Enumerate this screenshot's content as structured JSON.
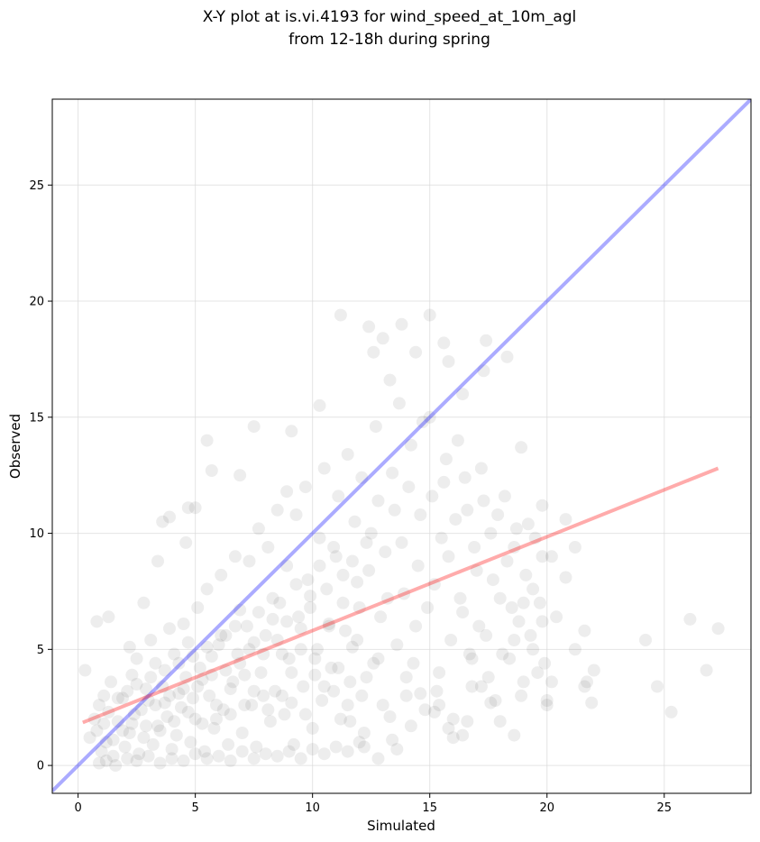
{
  "chart_data": {
    "type": "scatter",
    "title": [
      "X-Y plot at is.vi.4193 for wind_speed_at_10m_agl",
      "from 12-18h during spring"
    ],
    "xlabel": "Simulated",
    "ylabel": "Observed",
    "xlim": [
      -1.1,
      28.7
    ],
    "ylim": [
      -1.2,
      28.7
    ],
    "xticks": [
      0,
      5,
      10,
      15,
      20,
      25
    ],
    "yticks": [
      0,
      5,
      10,
      15,
      20,
      25
    ],
    "grid": true,
    "point_color": "#000000",
    "point_alpha": 0.07,
    "identity_line": {
      "color": "#0000ff",
      "alpha": 0.33,
      "x": [
        -1.1,
        28.7
      ],
      "y": [
        -1.1,
        28.7
      ]
    },
    "fit_line": {
      "color": "#ff0000",
      "alpha": 0.33,
      "x": [
        0.2,
        27.3
      ],
      "y": [
        1.85,
        12.8
      ]
    },
    "points": [
      [
        1.0,
        0.6
      ],
      [
        1.2,
        1.0
      ],
      [
        0.8,
        1.5
      ],
      [
        1.5,
        0.4
      ],
      [
        1.7,
        1.9
      ],
      [
        2.0,
        0.8
      ],
      [
        2.2,
        1.4
      ],
      [
        2.4,
        2.2
      ],
      [
        2.6,
        0.5
      ],
      [
        2.8,
        1.2
      ],
      [
        3.0,
        2.8
      ],
      [
        3.2,
        0.9
      ],
      [
        3.4,
        1.7
      ],
      [
        3.6,
        3.4
      ],
      [
        3.8,
        2.1
      ],
      [
        4.0,
        0.7
      ],
      [
        4.2,
        1.3
      ],
      [
        4.4,
        2.5
      ],
      [
        4.6,
        3.8
      ],
      [
        4.8,
        1.0
      ],
      [
        5.0,
        2.0
      ],
      [
        5.2,
        4.2
      ],
      [
        5.4,
        0.6
      ],
      [
        5.6,
        3.0
      ],
      [
        5.8,
        1.6
      ],
      [
        6.0,
        5.2
      ],
      [
        6.2,
        2.4
      ],
      [
        6.4,
        0.9
      ],
      [
        6.6,
        3.6
      ],
      [
        6.8,
        4.8
      ],
      [
        7.0,
        1.4
      ],
      [
        7.2,
        6.0
      ],
      [
        7.4,
        2.6
      ],
      [
        7.6,
        0.8
      ],
      [
        7.8,
        4.0
      ],
      [
        8.0,
        5.6
      ],
      [
        8.2,
        1.9
      ],
      [
        8.4,
        3.2
      ],
      [
        8.6,
        7.0
      ],
      [
        8.8,
        2.2
      ],
      [
        9.0,
        4.6
      ],
      [
        9.2,
        0.9
      ],
      [
        9.4,
        6.4
      ],
      [
        9.6,
        3.4
      ],
      [
        9.8,
        8.0
      ],
      [
        10.0,
        1.6
      ],
      [
        10.2,
        5.0
      ],
      [
        10.4,
        2.8
      ],
      [
        10.6,
        7.6
      ],
      [
        10.8,
        4.2
      ],
      [
        11.0,
        9.0
      ],
      [
        11.2,
        2.0
      ],
      [
        11.4,
        5.8
      ],
      [
        11.6,
        3.6
      ],
      [
        11.8,
        10.5
      ],
      [
        12.0,
        6.8
      ],
      [
        12.2,
        1.4
      ],
      [
        12.4,
        8.4
      ],
      [
        12.6,
        4.4
      ],
      [
        12.8,
        11.4
      ],
      [
        13.0,
        2.6
      ],
      [
        13.2,
        7.2
      ],
      [
        13.4,
        12.6
      ],
      [
        13.6,
        5.2
      ],
      [
        13.8,
        9.6
      ],
      [
        14.0,
        3.0
      ],
      [
        14.2,
        13.8
      ],
      [
        14.4,
        6.0
      ],
      [
        14.6,
        10.8
      ],
      [
        14.8,
        2.4
      ],
      [
        15.0,
        15.0
      ],
      [
        15.2,
        7.8
      ],
      [
        15.4,
        4.0
      ],
      [
        15.6,
        12.2
      ],
      [
        15.8,
        9.0
      ],
      [
        16.0,
        2.0
      ],
      [
        16.2,
        14.0
      ],
      [
        16.4,
        6.6
      ],
      [
        16.6,
        11.0
      ],
      [
        16.8,
        3.4
      ],
      [
        17.0,
        8.4
      ],
      [
        17.2,
        12.8
      ],
      [
        17.4,
        5.6
      ],
      [
        17.6,
        10.0
      ],
      [
        17.8,
        2.8
      ],
      [
        18.0,
        7.2
      ],
      [
        18.2,
        11.6
      ],
      [
        18.4,
        4.6
      ],
      [
        18.6,
        9.4
      ],
      [
        18.8,
        6.2
      ],
      [
        19.0,
        3.6
      ],
      [
        19.2,
        10.4
      ],
      [
        19.4,
        7.6
      ],
      [
        19.6,
        4.0
      ],
      [
        19.8,
        9.0
      ],
      [
        20.0,
        2.6
      ],
      [
        20.4,
        6.4
      ],
      [
        20.8,
        10.6
      ],
      [
        21.2,
        5.0
      ],
      [
        21.6,
        3.4
      ],
      [
        22.0,
        4.1
      ],
      [
        24.2,
        5.4
      ],
      [
        24.7,
        3.4
      ],
      [
        25.3,
        2.3
      ],
      [
        26.1,
        6.3
      ],
      [
        26.8,
        4.1
      ],
      [
        27.3,
        5.9
      ],
      [
        0.3,
        4.1
      ],
      [
        0.8,
        6.2
      ],
      [
        1.3,
        6.4
      ],
      [
        2.2,
        5.1
      ],
      [
        2.8,
        7.0
      ],
      [
        3.4,
        8.8
      ],
      [
        3.6,
        10.5
      ],
      [
        3.9,
        10.7
      ],
      [
        4.6,
        9.6
      ],
      [
        4.7,
        11.1
      ],
      [
        5.0,
        11.1
      ],
      [
        5.5,
        14.0
      ],
      [
        5.7,
        12.7
      ],
      [
        6.9,
        12.5
      ],
      [
        7.5,
        14.6
      ],
      [
        8.9,
        11.8
      ],
      [
        9.1,
        14.4
      ],
      [
        10.3,
        15.5
      ],
      [
        11.2,
        19.4
      ],
      [
        12.4,
        18.9
      ],
      [
        12.6,
        17.8
      ],
      [
        13.0,
        18.4
      ],
      [
        13.3,
        16.6
      ],
      [
        13.8,
        19.0
      ],
      [
        14.4,
        17.8
      ],
      [
        15.0,
        19.4
      ],
      [
        15.6,
        18.2
      ],
      [
        15.8,
        17.4
      ],
      [
        16.4,
        16.0
      ],
      [
        17.4,
        18.3
      ],
      [
        17.3,
        17.0
      ],
      [
        18.3,
        17.6
      ],
      [
        18.9,
        13.7
      ],
      [
        19.8,
        11.2
      ],
      [
        20.2,
        9.0
      ],
      [
        20.8,
        8.1
      ],
      [
        21.2,
        9.4
      ],
      [
        21.6,
        5.8
      ],
      [
        21.7,
        3.6
      ],
      [
        21.9,
        2.7
      ],
      [
        19.0,
        7.0
      ],
      [
        18.6,
        5.4
      ],
      [
        19.4,
        5.0
      ],
      [
        19.8,
        6.2
      ],
      [
        20.0,
        2.8
      ],
      [
        20.2,
        3.6
      ],
      [
        18.6,
        1.3
      ],
      [
        18.0,
        1.9
      ],
      [
        17.6,
        2.7
      ],
      [
        17.2,
        3.4
      ],
      [
        16.8,
        4.6
      ],
      [
        16.4,
        1.3
      ],
      [
        15.8,
        1.6
      ],
      [
        15.2,
        2.3
      ],
      [
        14.6,
        3.1
      ],
      [
        14.0,
        3.8
      ],
      [
        13.4,
        1.1
      ],
      [
        12.8,
        4.6
      ],
      [
        12.2,
        0.8
      ],
      [
        11.6,
        1.9
      ],
      [
        1.1,
        3.0
      ],
      [
        1.4,
        3.6
      ],
      [
        1.9,
        2.9
      ],
      [
        2.3,
        3.9
      ],
      [
        2.5,
        4.6
      ],
      [
        2.9,
        3.3
      ],
      [
        3.1,
        5.4
      ],
      [
        3.3,
        4.4
      ],
      [
        3.7,
        2.7
      ],
      [
        3.9,
        5.9
      ],
      [
        4.1,
        4.8
      ],
      [
        4.3,
        3.1
      ],
      [
        4.5,
        6.1
      ],
      [
        4.7,
        5.3
      ],
      [
        4.9,
        2.9
      ],
      [
        5.1,
        6.8
      ],
      [
        5.3,
        3.7
      ],
      [
        5.5,
        7.6
      ],
      [
        5.7,
        4.7
      ],
      [
        5.9,
        2.6
      ],
      [
        6.1,
        8.2
      ],
      [
        6.3,
        5.6
      ],
      [
        6.5,
        3.3
      ],
      [
        6.7,
        9.0
      ],
      [
        6.9,
        6.7
      ],
      [
        7.1,
        3.9
      ],
      [
        7.3,
        8.8
      ],
      [
        7.5,
        5.3
      ],
      [
        7.7,
        10.2
      ],
      [
        7.9,
        3.0
      ],
      [
        8.1,
        9.4
      ],
      [
        8.3,
        6.3
      ],
      [
        8.5,
        11.0
      ],
      [
        8.7,
        4.8
      ],
      [
        8.9,
        8.6
      ],
      [
        9.1,
        2.7
      ],
      [
        9.3,
        10.8
      ],
      [
        9.5,
        5.9
      ],
      [
        9.7,
        12.0
      ],
      [
        9.9,
        7.3
      ],
      [
        10.1,
        3.9
      ],
      [
        10.3,
        9.8
      ],
      [
        10.5,
        12.8
      ],
      [
        10.7,
        6.1
      ],
      [
        10.9,
        3.2
      ],
      [
        11.1,
        11.6
      ],
      [
        11.3,
        8.2
      ],
      [
        11.5,
        13.4
      ],
      [
        11.7,
        5.1
      ],
      [
        11.9,
        7.9
      ],
      [
        12.1,
        12.4
      ],
      [
        12.3,
        3.8
      ],
      [
        12.5,
        10.0
      ],
      [
        12.7,
        14.6
      ],
      [
        12.9,
        6.4
      ],
      [
        13.1,
        9.2
      ],
      [
        13.3,
        2.1
      ],
      [
        13.5,
        11.0
      ],
      [
        13.7,
        15.6
      ],
      [
        13.9,
        7.4
      ],
      [
        14.1,
        12.0
      ],
      [
        14.3,
        4.4
      ],
      [
        14.5,
        8.6
      ],
      [
        14.7,
        14.8
      ],
      [
        14.9,
        6.8
      ],
      [
        15.1,
        11.6
      ],
      [
        15.3,
        3.2
      ],
      [
        15.5,
        9.8
      ],
      [
        15.7,
        13.2
      ],
      [
        15.9,
        5.4
      ],
      [
        16.1,
        10.6
      ],
      [
        16.3,
        7.2
      ],
      [
        16.5,
        12.4
      ],
      [
        16.7,
        4.8
      ],
      [
        16.9,
        9.4
      ],
      [
        17.1,
        6.0
      ],
      [
        17.3,
        11.4
      ],
      [
        17.5,
        3.8
      ],
      [
        17.7,
        8.0
      ],
      [
        17.9,
        10.8
      ],
      [
        18.1,
        4.8
      ],
      [
        18.3,
        8.8
      ],
      [
        18.5,
        6.8
      ],
      [
        18.7,
        10.2
      ],
      [
        18.9,
        3.0
      ],
      [
        19.1,
        8.2
      ],
      [
        19.3,
        5.6
      ],
      [
        19.5,
        9.8
      ],
      [
        19.7,
        7.0
      ],
      [
        19.9,
        4.4
      ],
      [
        0.9,
        0.1
      ],
      [
        1.2,
        0.2
      ],
      [
        1.6,
        0.0
      ],
      [
        2.1,
        0.3
      ],
      [
        2.5,
        0.2
      ],
      [
        3.0,
        0.4
      ],
      [
        3.5,
        0.1
      ],
      [
        4.0,
        0.3
      ],
      [
        4.5,
        0.2
      ],
      [
        5.0,
        0.5
      ],
      [
        5.5,
        0.3
      ],
      [
        6.0,
        0.4
      ],
      [
        6.5,
        0.2
      ],
      [
        7.0,
        0.6
      ],
      [
        7.5,
        0.3
      ],
      [
        8.0,
        0.5
      ],
      [
        8.5,
        0.4
      ],
      [
        9.0,
        0.6
      ],
      [
        9.5,
        0.3
      ],
      [
        10.0,
        0.7
      ],
      [
        10.5,
        0.5
      ],
      [
        11.0,
        0.8
      ],
      [
        11.5,
        0.6
      ],
      [
        12.0,
        1.0
      ],
      [
        12.8,
        0.3
      ],
      [
        13.6,
        0.7
      ],
      [
        14.2,
        1.7
      ],
      [
        15.4,
        2.6
      ],
      [
        16.0,
        1.2
      ],
      [
        16.6,
        1.9
      ],
      [
        0.5,
        1.2
      ],
      [
        0.7,
        2.0
      ],
      [
        0.9,
        2.6
      ],
      [
        1.1,
        1.8
      ],
      [
        1.3,
        2.3
      ],
      [
        1.5,
        1.1
      ],
      [
        1.7,
        2.9
      ],
      [
        1.9,
        1.5
      ],
      [
        2.1,
        3.2
      ],
      [
        2.3,
        1.8
      ],
      [
        2.5,
        3.5
      ],
      [
        2.7,
        2.4
      ],
      [
        2.9,
        1.7
      ],
      [
        3.1,
        3.8
      ],
      [
        3.3,
        2.6
      ],
      [
        3.5,
        1.5
      ],
      [
        3.7,
        4.1
      ],
      [
        3.9,
        3.0
      ],
      [
        4.1,
        1.9
      ],
      [
        4.3,
        4.4
      ],
      [
        4.5,
        3.3
      ],
      [
        4.7,
        2.3
      ],
      [
        4.9,
        4.7
      ],
      [
        5.1,
        3.4
      ],
      [
        5.3,
        1.8
      ],
      [
        5.5,
        5.1
      ],
      [
        5.7,
        3.9
      ],
      [
        5.9,
        2.0
      ],
      [
        6.1,
        5.6
      ],
      [
        6.3,
        4.1
      ],
      [
        6.5,
        2.2
      ],
      [
        6.7,
        6.0
      ],
      [
        6.9,
        4.4
      ],
      [
        7.1,
        2.6
      ],
      [
        7.3,
        5.0
      ],
      [
        7.5,
        3.2
      ],
      [
        7.7,
        6.6
      ],
      [
        7.9,
        4.8
      ],
      [
        8.1,
        2.4
      ],
      [
        8.3,
        7.2
      ],
      [
        8.5,
        5.4
      ],
      [
        8.7,
        3.0
      ],
      [
        8.9,
        6.2
      ],
      [
        9.1,
        4.0
      ],
      [
        9.3,
        7.8
      ],
      [
        9.5,
        5.0
      ],
      [
        9.7,
        2.2
      ],
      [
        9.9,
        6.8
      ],
      [
        10.1,
        4.6
      ],
      [
        10.3,
        8.6
      ],
      [
        10.5,
        3.4
      ],
      [
        10.7,
        6.0
      ],
      [
        10.9,
        9.4
      ],
      [
        11.1,
        4.2
      ],
      [
        11.3,
        7.0
      ],
      [
        11.5,
        2.6
      ],
      [
        11.7,
        8.8
      ],
      [
        11.9,
        5.4
      ],
      [
        12.1,
        3.0
      ],
      [
        12.3,
        9.6
      ]
    ]
  }
}
